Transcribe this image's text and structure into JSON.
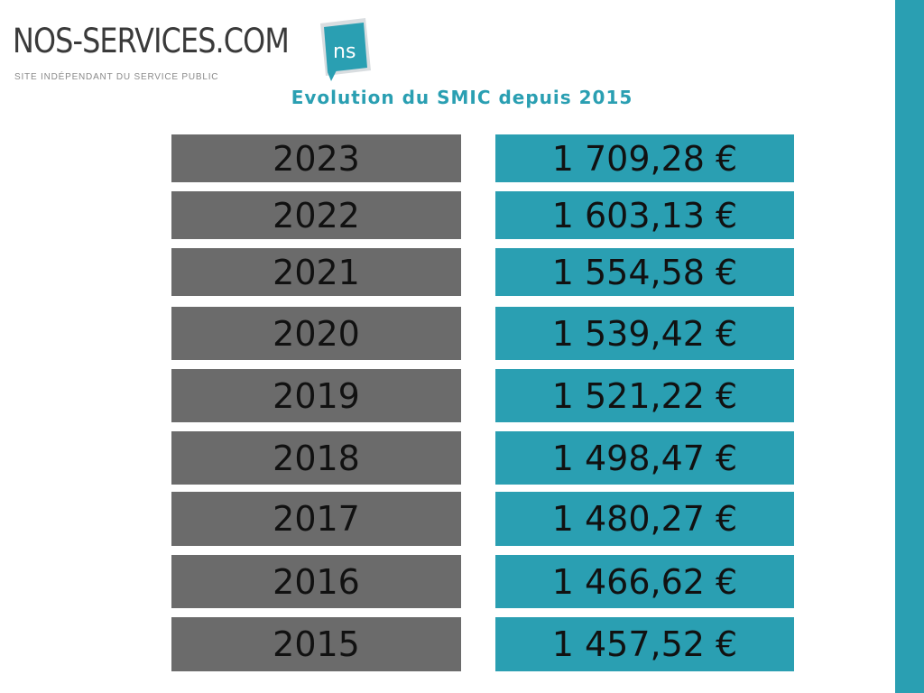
{
  "logo": {
    "name": "NOS-SERVICES.COM",
    "tagline": "SITE INDÉPENDANT DU SERVICE PUBLIC",
    "icon_text": "ns"
  },
  "colors": {
    "accent": "#2a9fb2",
    "year_cell": "#6b6b6b",
    "text": "#111111"
  },
  "chart_data": {
    "type": "table",
    "title": "Evolution du SMIC depuis 2015",
    "categories": [
      "2023",
      "2022",
      "2021",
      "2020",
      "2019",
      "2018",
      "2017",
      "2016",
      "2015"
    ],
    "values": [
      1709.28,
      1603.13,
      1554.58,
      1539.42,
      1521.22,
      1498.47,
      1480.27,
      1466.62,
      1457.52
    ],
    "value_labels": [
      "1 709,28 €",
      "1 603,13 €",
      "1 554,58 €",
      "1 539,42 €",
      "1 521,22 €",
      "1 498,47 €",
      "1 480,27 €",
      "1 466,62 €",
      "1 457,52 €"
    ]
  }
}
